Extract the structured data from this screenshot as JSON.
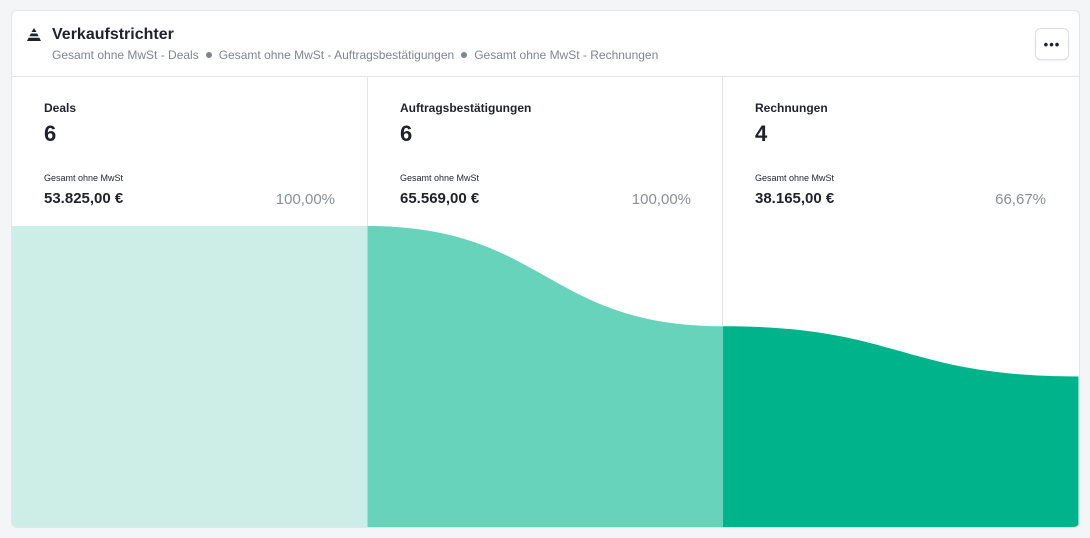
{
  "header": {
    "title": "Verkaufstrichter",
    "subtitle_items": [
      "Gesamt ohne MwSt - Deals",
      "Gesamt ohne MwSt - Auftragsbestätigungen",
      "Gesamt ohne MwSt - Rechnungen"
    ],
    "menu_label": "•••",
    "icon": "funnel-icon"
  },
  "stages": [
    {
      "name": "Deals",
      "count": "6",
      "metric_label": "Gesamt ohne MwSt",
      "amount": "53.825,00 €",
      "percent": "100,00%",
      "percent_value": 100.0,
      "color": "#cdeee6"
    },
    {
      "name": "Auftragsbestätigungen",
      "count": "6",
      "metric_label": "Gesamt ohne MwSt",
      "amount": "65.569,00 €",
      "percent": "100,00%",
      "percent_value": 100.0,
      "color": "#66d3ba"
    },
    {
      "name": "Rechnungen",
      "count": "4",
      "metric_label": "Gesamt ohne MwSt",
      "amount": "38.165,00 €",
      "percent": "66,67%",
      "percent_value": 66.67,
      "color": "#00b38b"
    }
  ]
}
